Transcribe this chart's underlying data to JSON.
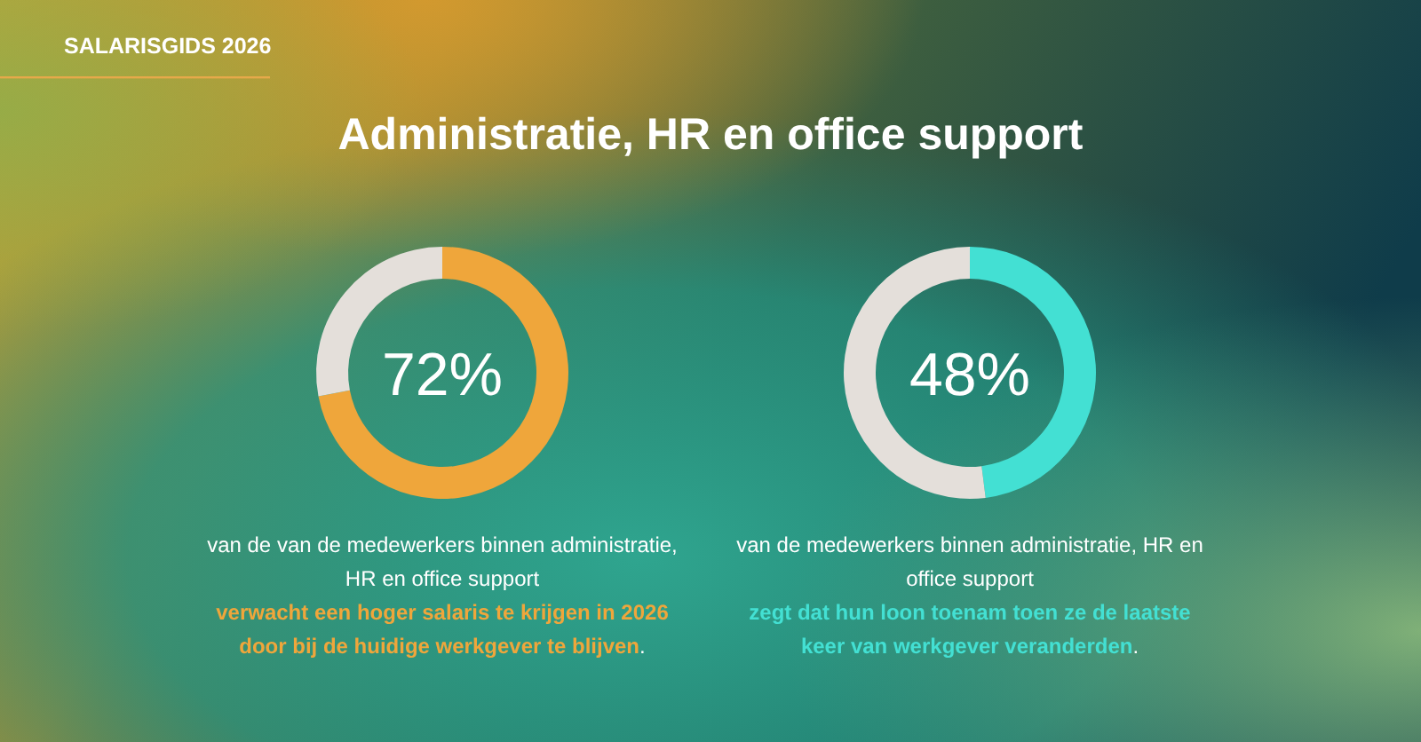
{
  "chart_data": [
    {
      "type": "donut",
      "title": "Administratie, HR en office support",
      "annotations": [
        "SALARISGIDS 2026",
        "van de van de medewerkers binnen administratie, HR en office support",
        "verwacht een hoger salaris te krijgen in 2026 door bij de huidige werkgever te blijven."
      ],
      "categories": [
        null,
        null
      ],
      "values": [
        72,
        28
      ],
      "colors": [
        "#efa63b",
        "#e4dfda"
      ],
      "value_labels": [
        "72%",
        null
      ]
    },
    {
      "type": "donut",
      "annotations": [
        "van de medewerkers binnen administratie, HR en office support",
        "zegt dat hun loon toenam toen ze de laatste keer van werkgever veranderden."
      ],
      "categories": [
        null,
        null
      ],
      "values": [
        48,
        52
      ],
      "colors": [
        "#43e0d3",
        "#e4dfda"
      ],
      "value_labels": [
        "48%",
        null
      ]
    }
  ]
}
